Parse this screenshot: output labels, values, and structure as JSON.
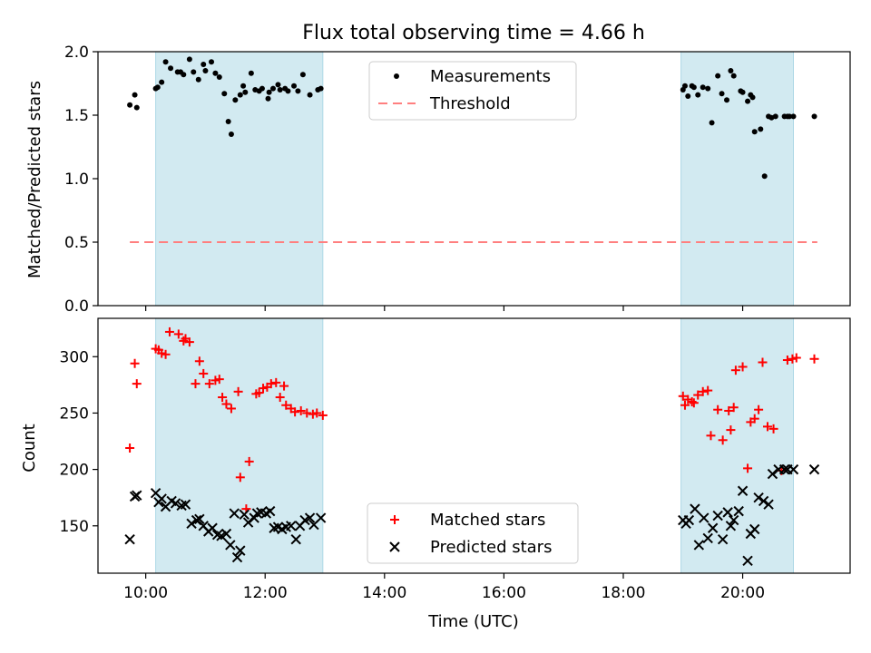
{
  "title": "Flux total observing time = 4.66 h",
  "chart_data": [
    {
      "type": "scatter",
      "title": "Flux total observing time = 4.66 h",
      "xlabel": "",
      "ylabel": "Matched/Predicted stars",
      "ylim": [
        0,
        2.0
      ],
      "yticks": [
        "0.0",
        "0.5",
        "1.0",
        "1.5",
        "2.0"
      ],
      "legend": [
        "Measurements",
        "Threshold"
      ],
      "legend_position": "top-center",
      "threshold": 0.5,
      "threshold_x_range": [
        "09:44",
        "21:15"
      ],
      "shaded_intervals": [
        [
          "10:10",
          "12:58"
        ],
        [
          "18:58",
          "20:51"
        ]
      ],
      "series": [
        {
          "name": "Measurements",
          "x": [
            "09:44",
            "09:49",
            "09:51",
            "10:10",
            "10:12",
            "10:16",
            "10:20",
            "10:25",
            "10:32",
            "10:35",
            "10:38",
            "10:44",
            "10:48",
            "10:53",
            "10:58",
            "11:00",
            "11:06",
            "11:10",
            "11:14",
            "11:19",
            "11:23",
            "11:26",
            "11:30",
            "11:35",
            "11:38",
            "11:40",
            "11:46",
            "11:50",
            "11:54",
            "11:57",
            "12:03",
            "12:04",
            "12:08",
            "12:13",
            "12:15",
            "12:20",
            "12:23",
            "12:29",
            "12:33",
            "12:38",
            "12:45",
            "12:53",
            "12:56",
            "19:00",
            "19:02",
            "19:05",
            "19:09",
            "19:11",
            "19:15",
            "19:20",
            "19:25",
            "19:29",
            "19:35",
            "19:39",
            "19:44",
            "19:48",
            "19:51",
            "19:58",
            "20:00",
            "20:05",
            "20:08",
            "20:10",
            "20:12",
            "20:18",
            "20:22",
            "20:26",
            "20:29",
            "20:33",
            "20:42",
            "20:45",
            "20:47",
            "20:51",
            "21:12"
          ],
          "y": [
            1.58,
            1.66,
            1.56,
            1.71,
            1.72,
            1.76,
            1.92,
            1.87,
            1.84,
            1.84,
            1.82,
            1.94,
            1.84,
            1.78,
            1.9,
            1.85,
            1.92,
            1.83,
            1.8,
            1.67,
            1.45,
            1.35,
            1.62,
            1.66,
            1.73,
            1.68,
            1.83,
            1.7,
            1.69,
            1.71,
            1.63,
            1.68,
            1.71,
            1.74,
            1.7,
            1.71,
            1.69,
            1.73,
            1.69,
            1.82,
            1.66,
            1.7,
            1.71,
            1.7,
            1.73,
            1.65,
            1.73,
            1.72,
            1.66,
            1.72,
            1.71,
            1.44,
            1.81,
            1.67,
            1.62,
            1.85,
            1.81,
            1.69,
            1.68,
            1.61,
            1.66,
            1.64,
            1.37,
            1.39,
            1.02,
            1.49,
            1.48,
            1.49,
            1.49,
            1.49,
            1.49,
            1.49,
            1.49
          ]
        },
        {
          "name": "Threshold",
          "x": [
            "09:44",
            "21:15"
          ],
          "y": [
            0.5,
            0.5
          ]
        }
      ]
    },
    {
      "type": "scatter",
      "title": "",
      "xlabel": "Time (UTC)",
      "ylabel": "Count",
      "ylim": [
        108,
        334
      ],
      "yticks": [
        "150",
        "200",
        "250",
        "300"
      ],
      "xticks": [
        "10:00",
        "12:00",
        "14:00",
        "16:00",
        "18:00",
        "20:00"
      ],
      "legend": [
        "Matched stars",
        "Predicted stars"
      ],
      "legend_position": "bottom-center",
      "shaded_intervals": [
        [
          "10:10",
          "12:58"
        ],
        [
          "18:58",
          "20:51"
        ]
      ],
      "series": [
        {
          "name": "Matched stars",
          "x": [
            "09:44",
            "09:49",
            "09:51",
            "10:10",
            "10:13",
            "10:16",
            "10:20",
            "10:24",
            "10:33",
            "10:38",
            "10:40",
            "10:44",
            "10:50",
            "10:54",
            "10:58",
            "11:04",
            "11:10",
            "11:14",
            "11:17",
            "11:21",
            "11:26",
            "11:33",
            "11:35",
            "11:41",
            "11:44",
            "11:51",
            "11:54",
            "11:58",
            "12:02",
            "12:06",
            "12:11",
            "12:15",
            "12:19",
            "12:21",
            "12:26",
            "12:30",
            "12:36",
            "12:42",
            "12:48",
            "12:52",
            "12:58",
            "19:00",
            "19:02",
            "19:05",
            "19:09",
            "19:11",
            "19:15",
            "19:20",
            "19:25",
            "19:28",
            "19:35",
            "19:40",
            "19:46",
            "19:48",
            "19:51",
            "19:53",
            "20:00",
            "20:05",
            "20:08",
            "20:12",
            "20:16",
            "20:20",
            "20:25",
            "20:31",
            "20:39",
            "20:45",
            "20:50",
            "20:54",
            "21:12"
          ],
          "y": [
            219,
            294,
            276,
            307,
            306,
            303,
            302,
            322,
            320,
            314,
            316,
            313,
            276,
            296,
            285,
            276,
            279,
            280,
            264,
            258,
            254,
            269,
            193,
            165,
            207,
            267,
            268,
            272,
            273,
            276,
            277,
            264,
            274,
            257,
            254,
            251,
            252,
            250,
            249,
            250,
            248,
            265,
            257,
            262,
            260,
            259,
            266,
            269,
            270,
            230,
            253,
            226,
            252,
            235,
            255,
            288,
            291,
            201,
            242,
            245,
            253,
            295,
            238,
            236,
            199,
            297,
            298,
            299,
            298
          ]
        },
        {
          "name": "Predicted stars",
          "x": [
            "09:44",
            "09:49",
            "09:51",
            "10:10",
            "10:13",
            "10:16",
            "10:20",
            "10:26",
            "10:30",
            "10:36",
            "10:40",
            "10:46",
            "10:51",
            "10:54",
            "10:58",
            "11:03",
            "11:07",
            "11:12",
            "11:16",
            "11:21",
            "11:25",
            "11:29",
            "11:32",
            "11:35",
            "11:39",
            "11:43",
            "11:49",
            "11:52",
            "11:56",
            "12:01",
            "12:05",
            "12:09",
            "12:13",
            "12:17",
            "12:21",
            "12:26",
            "12:31",
            "12:35",
            "12:40",
            "12:45",
            "12:49",
            "12:56",
            "19:00",
            "19:03",
            "19:06",
            "19:12",
            "19:16",
            "19:21",
            "19:25",
            "19:30",
            "19:35",
            "19:40",
            "19:45",
            "19:48",
            "19:51",
            "19:56",
            "20:00",
            "20:05",
            "20:08",
            "20:12",
            "20:16",
            "20:21",
            "20:26",
            "20:30",
            "20:36",
            "20:42",
            "20:45",
            "20:51",
            "21:12"
          ],
          "y": [
            138,
            176,
            177,
            179,
            171,
            174,
            167,
            172,
            170,
            168,
            169,
            152,
            155,
            156,
            150,
            145,
            148,
            142,
            141,
            143,
            133,
            161,
            122,
            128,
            160,
            153,
            157,
            161,
            162,
            161,
            163,
            148,
            149,
            147,
            149,
            150,
            138,
            150,
            155,
            157,
            151,
            157,
            155,
            152,
            155,
            165,
            133,
            157,
            139,
            148,
            159,
            138,
            162,
            150,
            155,
            163,
            181,
            119,
            143,
            147,
            175,
            172,
            169,
            196,
            200,
            200,
            200,
            200,
            200
          ]
        }
      ]
    }
  ],
  "colors": {
    "shade": "#add8e6",
    "measurement": "#000000",
    "threshold": "#ff7f7f",
    "matched": "#ff0000",
    "predicted": "#000000"
  }
}
